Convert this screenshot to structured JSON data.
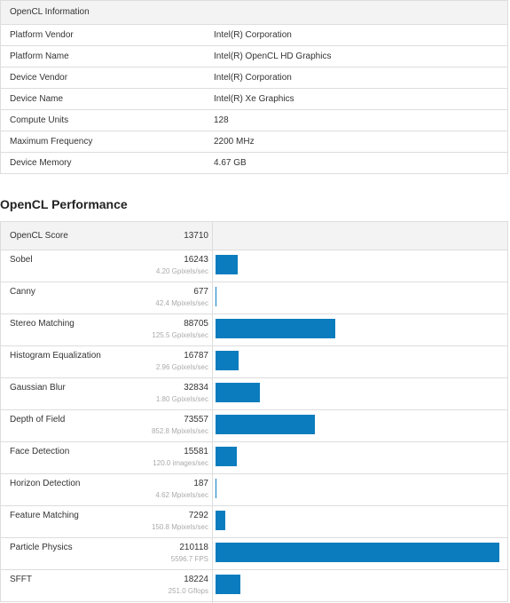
{
  "info": {
    "title": "OpenCL Information",
    "rows": [
      [
        "Platform Vendor",
        "Intel(R) Corporation"
      ],
      [
        "Platform Name",
        "Intel(R) OpenCL HD Graphics"
      ],
      [
        "Device Vendor",
        "Intel(R) Corporation"
      ],
      [
        "Device Name",
        "Intel(R) Xe Graphics"
      ],
      [
        "Compute Units",
        "128"
      ],
      [
        "Maximum Frequency",
        "2200 MHz"
      ],
      [
        "Device Memory",
        "4.67 GB"
      ]
    ]
  },
  "performance": {
    "title": "OpenCL Performance",
    "score_label": "OpenCL Score",
    "score": 13710,
    "bar_color": "#0b7dbe",
    "rows": [
      {
        "name": "Sobel",
        "score": 16243,
        "rate": "4.20 Gpixels/sec"
      },
      {
        "name": "Canny",
        "score": 677,
        "rate": "42.4 Mpixels/sec"
      },
      {
        "name": "Stereo Matching",
        "score": 88705,
        "rate": "125.5 Gpixels/sec"
      },
      {
        "name": "Histogram Equalization",
        "score": 16787,
        "rate": "2.96 Gpixels/sec"
      },
      {
        "name": "Gaussian Blur",
        "score": 32834,
        "rate": "1.80 Gpixels/sec"
      },
      {
        "name": "Depth of Field",
        "score": 73557,
        "rate": "852.8 Mpixels/sec"
      },
      {
        "name": "Face Detection",
        "score": 15581,
        "rate": "120.0 images/sec"
      },
      {
        "name": "Horizon Detection",
        "score": 187,
        "rate": "4.62 Mpixels/sec"
      },
      {
        "name": "Feature Matching",
        "score": 7292,
        "rate": "150.8 Mpixels/sec"
      },
      {
        "name": "Particle Physics",
        "score": 210118,
        "rate": "5596.7 FPS"
      },
      {
        "name": "SFFT",
        "score": 18224,
        "rate": "251.0 Gflops"
      }
    ]
  }
}
